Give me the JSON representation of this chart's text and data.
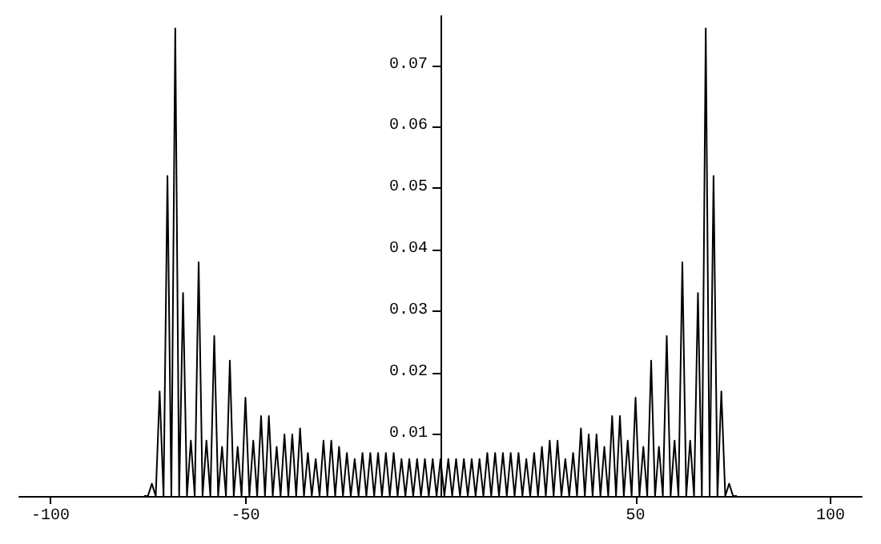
{
  "chart_data": {
    "type": "line",
    "x": [
      -76,
      -75,
      -74,
      -73,
      -72,
      -71,
      -70,
      -69,
      -68,
      -67,
      -66,
      -65,
      -64,
      -63,
      -62,
      -61,
      -60,
      -59,
      -58,
      -57,
      -56,
      -55,
      -54,
      -53,
      -52,
      -51,
      -50,
      -49,
      -48,
      -47,
      -46,
      -45,
      -44,
      -43,
      -42,
      -41,
      -40,
      -39,
      -38,
      -37,
      -36,
      -35,
      -34,
      -33,
      -32,
      -31,
      -30,
      -29,
      -28,
      -27,
      -26,
      -25,
      -24,
      -23,
      -22,
      -21,
      -20,
      -19,
      -18,
      -17,
      -16,
      -15,
      -14,
      -13,
      -12,
      -11,
      -10,
      -9,
      -8,
      -7,
      -6,
      -5,
      -4,
      -3,
      -2,
      -1,
      0,
      1,
      2,
      3,
      4,
      5,
      6,
      7,
      8,
      9,
      10,
      11,
      12,
      13,
      14,
      15,
      16,
      17,
      18,
      19,
      20,
      21,
      22,
      23,
      24,
      25,
      26,
      27,
      28,
      29,
      30,
      31,
      32,
      33,
      34,
      35,
      36,
      37,
      38,
      39,
      40,
      41,
      42,
      43,
      44,
      45,
      46,
      47,
      48,
      49,
      50,
      51,
      52,
      53,
      54,
      55,
      56,
      57,
      58,
      59,
      60,
      61,
      62,
      63,
      64,
      65,
      66,
      67,
      68,
      69,
      70,
      71,
      72,
      73,
      74,
      75,
      76
    ],
    "series": [
      {
        "color": "#000000",
        "values": [
          0,
          0,
          0.002,
          0,
          0.017,
          0,
          0.052,
          0,
          0.076,
          0,
          0.033,
          0,
          0.009,
          0,
          0.038,
          0,
          0.009,
          0,
          0.026,
          0,
          0.008,
          0,
          0.022,
          0,
          0.008,
          0,
          0.016,
          0,
          0.009,
          0,
          0.013,
          0,
          0.013,
          0,
          0.008,
          0,
          0.01,
          0,
          0.01,
          0,
          0.011,
          0,
          0.007,
          0,
          0.006,
          0,
          0.009,
          0,
          0.009,
          0,
          0.008,
          0,
          0.007,
          0,
          0.006,
          0,
          0.007,
          0,
          0.007,
          0,
          0.007,
          0,
          0.007,
          0,
          0.007,
          0,
          0.006,
          0,
          0.006,
          0,
          0.006,
          0,
          0.006,
          0,
          0.006,
          0,
          0.006,
          0,
          0.006,
          0,
          0.006,
          0,
          0.006,
          0,
          0.006,
          0,
          0.006,
          0,
          0.007,
          0,
          0.007,
          0,
          0.007,
          0,
          0.007,
          0,
          0.007,
          0,
          0.006,
          0,
          0.007,
          0,
          0.008,
          0,
          0.009,
          0,
          0.009,
          0,
          0.006,
          0,
          0.007,
          0,
          0.011,
          0,
          0.01,
          0,
          0.01,
          0,
          0.008,
          0,
          0.013,
          0,
          0.013,
          0,
          0.009,
          0,
          0.016,
          0,
          0.008,
          0,
          0.022,
          0,
          0.008,
          0,
          0.026,
          0,
          0.009,
          0,
          0.038,
          0,
          0.009,
          0,
          0.033,
          0,
          0.076,
          0,
          0.052,
          0,
          0.017,
          0,
          0.002,
          0,
          0
        ]
      }
    ],
    "xlim": [
      -108,
      108
    ],
    "xticks": [
      -100,
      -50,
      50,
      100
    ],
    "ylim": [
      0,
      0.078
    ],
    "yticks": [
      0.01,
      0.02,
      0.03,
      0.04,
      0.05,
      0.06,
      0.07
    ],
    "marker": "none",
    "line_style": "solid",
    "grid": false
  }
}
